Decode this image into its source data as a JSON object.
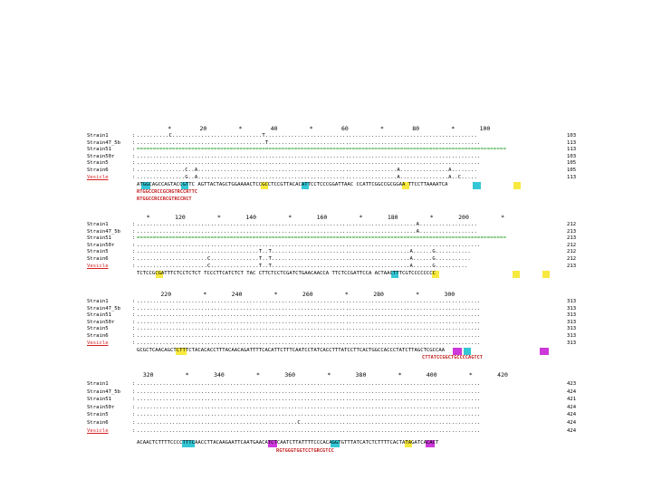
{
  "colors": {
    "yellow_highlight": "#f7e93e",
    "cyan_highlight": "#33c7d6",
    "magenta_highlight": "#cc38d9",
    "primer_red": "#c21b1b",
    "reference_green": "#1a9a1a"
  },
  "blocks": [
    {
      "ruler": "         *        20         *        40         *        60         *        80         *       100",
      "rows": [
        {
          "name": "Strain1",
          "seq": "..........C............................T..................................................................",
          "num": "103",
          "style": ""
        },
        {
          "name": "Strain47_5b",
          "seq": "........................................T..................................................................",
          "num": "113",
          "style": ""
        },
        {
          "name": "Strain51",
          "seq": "===================================================================================================================",
          "num": "113",
          "style": "green"
        },
        {
          "name": "Strain50r",
          "seq": "...........................................................................................................",
          "num": "103",
          "style": ""
        },
        {
          "name": "Strain5",
          "seq": "...........................................................................................................",
          "num": "105",
          "style": ""
        },
        {
          "name": "Strain6",
          "seq": "...............C..A..............................................................A...............A........",
          "num": "105",
          "style": ""
        },
        {
          "name": "Vesicle",
          "seq": "...............G..A..............................................................A...............A..C.....",
          "num": "113",
          "style": "red-name"
        }
      ],
      "consensus": "ATGGCAGCCAGTACCGTTC AGTTACTAGCTGGAAAACTCCGCCTCCGTTACACATTCCTCCCGGATTAAC CCATTCGGCCGCGGAA TTCCTTAAAATCA",
      "primers": [
        "RTGGCCRCCGCRGTRCCRTTC",
        "RTGGCCRCCRCGTRCCRCT"
      ]
    },
    {
      "ruler": "   *       120         *       140         *       160         *       180         *       200         *",
      "rows": [
        {
          "name": "Strain1",
          "seq": ".......................................................................................A..................",
          "num": "212",
          "style": ""
        },
        {
          "name": "Strain47_5b",
          "seq": ".......................................................................................A..................",
          "num": "213",
          "style": ""
        },
        {
          "name": "Strain51",
          "seq": "===================================================================================================================",
          "num": "213",
          "style": "green"
        },
        {
          "name": "Strain50r",
          "seq": "...........................................................................................................",
          "num": "212",
          "style": ""
        },
        {
          "name": "Strain5",
          "seq": "......................................T..T...........................................A......G...........",
          "num": "212",
          "style": ""
        },
        {
          "name": "Strain6",
          "seq": "......................C...............T..T...........................................A......G...........",
          "num": "212",
          "style": ""
        },
        {
          "name": "Vesicle",
          "seq": "......................C...............T..T...........................................A......G..........",
          "num": "213",
          "style": "red-name"
        }
      ],
      "consensus": "TCTCCGCGATTTCTCCTCTCT TCCCTTCATCTCT TAC CTTCTCCTCGATCTGAACAACCA TTCTCCGATTCCA ACTAACTTTCGTCCCCCCCC",
      "primers": []
    },
    {
      "ruler": "       220         *       240         *       260         *       280         *       300",
      "rows": [
        {
          "name": "Strain1",
          "seq": "...........................................................................................................",
          "num": "313",
          "style": ""
        },
        {
          "name": "Strain47_5b",
          "seq": "...........................................................................................................",
          "num": "313",
          "style": ""
        },
        {
          "name": "Strain51",
          "seq": "...........................................................................................................",
          "num": "313",
          "style": ""
        },
        {
          "name": "Strain50r",
          "seq": "...........................................................................................................",
          "num": "313",
          "style": ""
        },
        {
          "name": "Strain5",
          "seq": "...........................................................................................................",
          "num": "313",
          "style": ""
        },
        {
          "name": "Strain6",
          "seq": "...........................................................................................................",
          "num": "313",
          "style": ""
        },
        {
          "name": "Vesicle",
          "seq": "...........................................................................................................",
          "num": "313",
          "style": "red-name"
        }
      ],
      "consensus": "GCGCTCAACAGCTCTTTCTACACACCTTTACAACAGATTTTCACATTCTTTCAATCCTATCACCTTTATCCTTCACTGGCCACCCTATCTTAGCTCGCCAA",
      "primers": [
        "CTTATCCGGCTGCCCCAGTCT"
      ]
    },
    {
      "ruler": "  320         *       340         *       360         *       380         *       400         *       420",
      "rows": [
        {
          "name": "Strain1",
          "seq": "...........................................................................................................",
          "num": "423",
          "style": ""
        },
        {
          "name": "Strain47_5b",
          "seq": "...........................................................................................................",
          "num": "424",
          "style": ""
        },
        {
          "name": "Strain51",
          "seq": "...........................................................................................................",
          "num": "421",
          "style": ""
        },
        {
          "name": "Strain50r",
          "seq": "...........................................................................................................",
          "num": "424",
          "style": ""
        },
        {
          "name": "Strain5",
          "seq": "...........................................................................................................",
          "num": "424",
          "style": ""
        },
        {
          "name": "Strain6",
          "seq": "..................................................C........................................................",
          "num": "424",
          "style": ""
        },
        {
          "name": "Vesicle",
          "seq": "...........................................................................................................",
          "num": "424",
          "style": "red-name"
        }
      ],
      "consensus": "ACAACTCTTTTCCCCTTTCAACCTTACAAGAATTCAATGAACATCTCAATCTTATTTTCCCACAGGTGTTTATCATCTCTTTTCACTATAGATCACACT",
      "primers": [
        "RGTGGGTGGTCCTGRCGTCC"
      ]
    }
  ]
}
